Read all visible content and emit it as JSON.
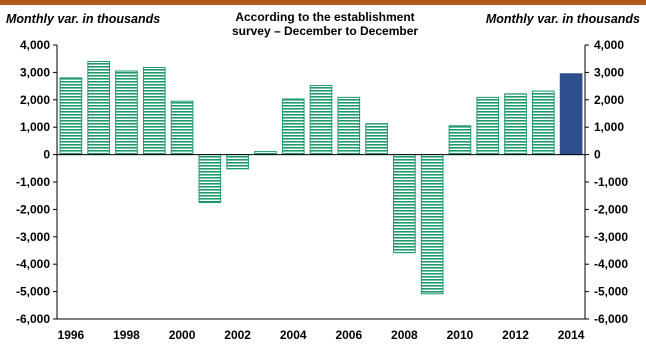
{
  "chart_data": {
    "type": "bar",
    "title_line1": "According to the establishment",
    "title_line2": "survey – December to December",
    "ylabel_left": "Monthly var. in thousands",
    "ylabel_right": "Monthly var. in thousands",
    "ylim": [
      -6000,
      4000
    ],
    "yticks": [
      4000,
      3000,
      2000,
      1000,
      0,
      -1000,
      -2000,
      -3000,
      -4000,
      -5000,
      -6000
    ],
    "ytick_labels": [
      "4,000",
      "3,000",
      "2,000",
      "1,000",
      "0",
      "-1,000",
      "-2,000",
      "-3,000",
      "-4,000",
      "-5,000",
      "-6,000"
    ],
    "x": [
      1996,
      1997,
      1998,
      1999,
      2000,
      2001,
      2002,
      2003,
      2004,
      2005,
      2006,
      2007,
      2008,
      2009,
      2010,
      2011,
      2012,
      2013,
      2014
    ],
    "xtick_labels": [
      "1996",
      "1998",
      "2000",
      "2002",
      "2004",
      "2006",
      "2008",
      "2010",
      "2012",
      "2014"
    ],
    "values": [
      2800,
      3400,
      3050,
      3180,
      1950,
      -1750,
      -520,
      110,
      2030,
      2520,
      2090,
      1130,
      -3580,
      -5080,
      1050,
      2090,
      2220,
      2320,
      2950
    ],
    "colors": {
      "bar": "#1f9a6b",
      "highlight": "#2d4f8e",
      "top_band": "#b25a1b"
    },
    "highlight_index": 18,
    "grid": false
  }
}
